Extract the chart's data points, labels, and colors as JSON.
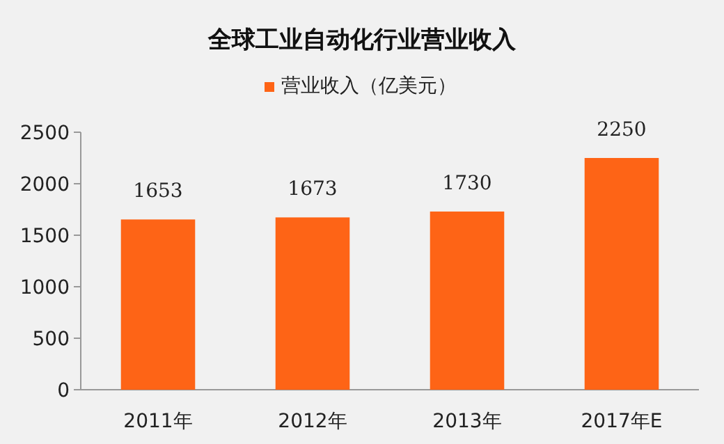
{
  "chart_data": {
    "type": "bar",
    "title": "全球工业自动化行业营业收入",
    "categories": [
      "2011年",
      "2012年",
      "2013年",
      "2017年E"
    ],
    "series": [
      {
        "name": "营业收入（亿美元）",
        "color": "#fe6416",
        "values": [
          1653,
          1673,
          1730,
          2250
        ]
      }
    ],
    "ylim": [
      0,
      2500
    ],
    "yticks": [
      0,
      500,
      1000,
      1500,
      2000,
      2500
    ],
    "grid": false,
    "legend": "top",
    "data_labels": true
  }
}
